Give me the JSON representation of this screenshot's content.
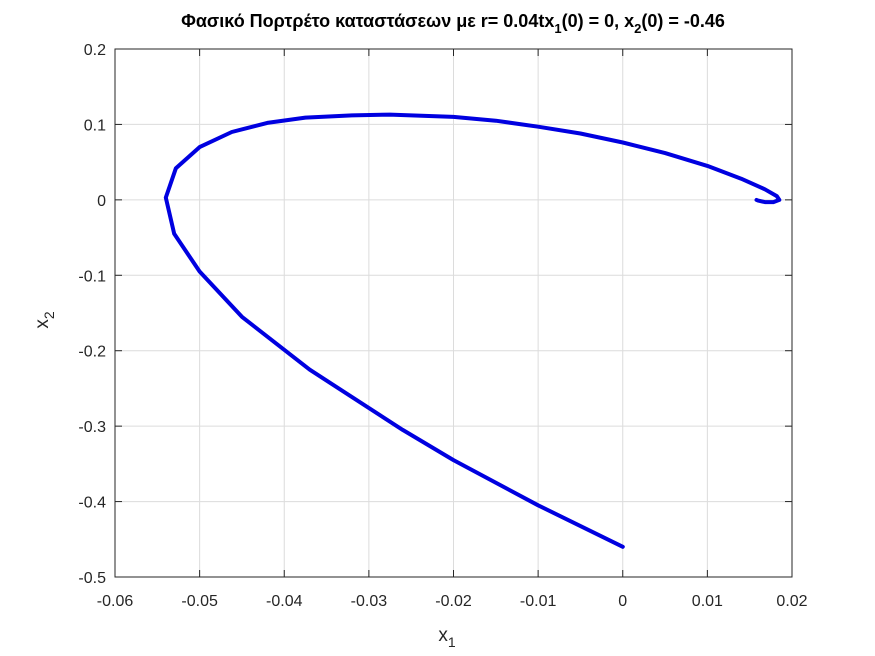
{
  "chart_data": {
    "type": "line",
    "title": {
      "main": "Φασικό Πορτρέτο καταστάσεων με r= 0.04tx",
      "sub1": "1",
      "mid": "(0) = 0, x",
      "sub2": "2",
      "tail": "(0) = -0.46"
    },
    "xlabel": {
      "base": "x",
      "sub": "1"
    },
    "ylabel": {
      "base": "x",
      "sub": "2"
    },
    "xlim": [
      -0.06,
      0.02
    ],
    "ylim": [
      -0.5,
      0.2
    ],
    "xticks": [
      -0.06,
      -0.05,
      -0.04,
      -0.03,
      -0.02,
      -0.01,
      0,
      0.01,
      0.02
    ],
    "xtick_labels": [
      "-0.06",
      "-0.05",
      "-0.04",
      "-0.03",
      "-0.02",
      "-0.01",
      "0",
      "0.01",
      "0.02"
    ],
    "yticks": [
      -0.5,
      -0.4,
      -0.3,
      -0.2,
      -0.1,
      0,
      0.1,
      0.2
    ],
    "ytick_labels": [
      "-0.5",
      "-0.4",
      "-0.3",
      "-0.2",
      "-0.1",
      "0",
      "0.1",
      "0.2"
    ],
    "grid": true,
    "colors": {
      "series": "#0000e0",
      "grid": "#dcdcdc",
      "axis": "#262626"
    },
    "series": [
      {
        "x": [
          0,
          -0.01,
          -0.02,
          -0.026,
          -0.037,
          -0.045,
          -0.05,
          -0.053,
          -0.054,
          -0.0528,
          -0.05,
          -0.0462,
          -0.042,
          -0.0375,
          -0.032,
          -0.0275,
          -0.02,
          -0.015,
          -0.01,
          -0.005,
          0,
          0.005,
          0.01,
          0.014,
          0.0168,
          0.0182,
          0.0185,
          0.0178,
          0.0168,
          0.016,
          0.0158
        ],
        "y": [
          -0.46,
          -0.405,
          -0.345,
          -0.305,
          -0.225,
          -0.155,
          -0.095,
          -0.045,
          0.003,
          0.042,
          0.07,
          0.09,
          0.102,
          0.109,
          0.112,
          0.113,
          0.11,
          0.105,
          0.097,
          0.088,
          0.076,
          0.062,
          0.045,
          0.028,
          0.014,
          0.005,
          0,
          -0.003,
          -0.003,
          -0.001,
          0
        ]
      }
    ]
  }
}
